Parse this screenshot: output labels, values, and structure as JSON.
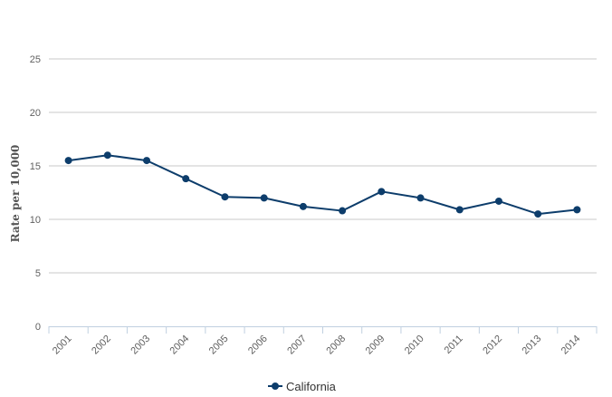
{
  "chart_data": {
    "type": "line",
    "title": "",
    "xlabel": "",
    "ylabel": "Rate per 10,000",
    "ylim": [
      0,
      25
    ],
    "yticks": [
      0,
      5,
      10,
      15,
      20,
      25
    ],
    "grid": true,
    "legend_position": "bottom-center",
    "categories": [
      "2001",
      "2002",
      "2003",
      "2004",
      "2005",
      "2006",
      "2007",
      "2008",
      "2009",
      "2010",
      "2011",
      "2012",
      "2013",
      "2014"
    ],
    "series": [
      {
        "name": "California",
        "color": "#0d3d6b",
        "values": [
          15.5,
          16.0,
          15.5,
          13.8,
          12.1,
          12.0,
          11.2,
          10.8,
          12.6,
          12.0,
          10.9,
          11.7,
          10.5,
          10.9
        ]
      }
    ]
  }
}
